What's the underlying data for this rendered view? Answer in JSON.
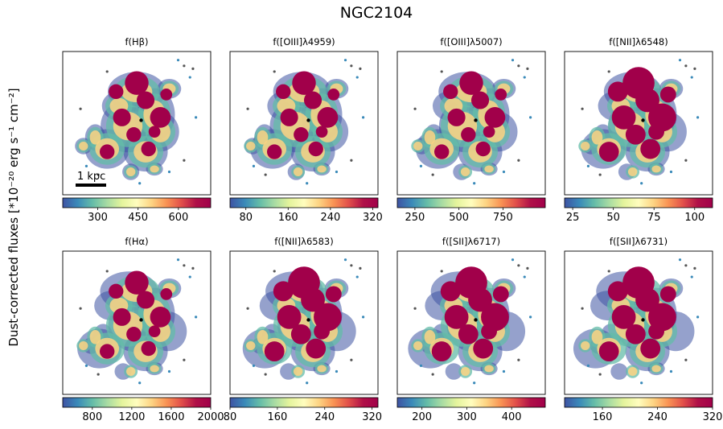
{
  "figure": {
    "title": "NGC2104",
    "ylabel": "Dust-corrected fluxes [*10⁻²⁰ erg s⁻¹ cm⁻²]",
    "scalebar_label": "1 kpc",
    "colormap": [
      "#3e53a3",
      "#3a8ab9",
      "#64bca8",
      "#a7dba3",
      "#e4f49c",
      "#fffdbe",
      "#fdd483",
      "#f99354",
      "#e2504a",
      "#b01048",
      "#a1004a"
    ]
  },
  "chart_data": [
    {
      "type": "heatmap",
      "title": "f(Hβ)",
      "colorbar": {
        "ticks": [
          300,
          450,
          600
        ],
        "tick_labels": [
          "300",
          "450",
          "600"
        ],
        "range": [
          170,
          720
        ]
      }
    },
    {
      "type": "heatmap",
      "title": "f([OIII]λ4959)",
      "colorbar": {
        "ticks": [
          80,
          160,
          240,
          320
        ],
        "tick_labels": [
          "80",
          "160",
          "240",
          "320"
        ],
        "range": [
          50,
          330
        ]
      }
    },
    {
      "type": "heatmap",
      "title": "f([OIII]λ5007)",
      "colorbar": {
        "ticks": [
          250,
          500,
          750
        ],
        "tick_labels": [
          "250",
          "500",
          "750"
        ],
        "range": [
          150,
          990
        ]
      }
    },
    {
      "type": "heatmap",
      "title": "f([NII]λ6548)",
      "colorbar": {
        "ticks": [
          25,
          50,
          75,
          100
        ],
        "tick_labels": [
          "25",
          "50",
          "75",
          "100"
        ],
        "range": [
          20,
          111
        ]
      }
    },
    {
      "type": "heatmap",
      "title": "f(Hα)",
      "colorbar": {
        "ticks": [
          800,
          1200,
          1600,
          2000
        ],
        "tick_labels": [
          "800",
          "1200",
          "1600",
          "2000"
        ],
        "range": [
          500,
          2000
        ]
      }
    },
    {
      "type": "heatmap",
      "title": "f([NII]λ6583)",
      "colorbar": {
        "ticks": [
          80,
          160,
          240,
          320
        ],
        "tick_labels": [
          "80",
          "160",
          "240",
          "320"
        ],
        "range": [
          80,
          330
        ]
      }
    },
    {
      "type": "heatmap",
      "title": "f([SII]λ6717)",
      "colorbar": {
        "ticks": [
          200,
          300,
          400
        ],
        "tick_labels": [
          "200",
          "300",
          "400"
        ],
        "range": [
          145,
          475
        ]
      }
    },
    {
      "type": "heatmap",
      "title": "f([SII]λ6731)",
      "colorbar": {
        "ticks": [
          160,
          240,
          320
        ],
        "tick_labels": [
          "160",
          "240",
          "320"
        ],
        "range": [
          105,
          320
        ]
      }
    }
  ]
}
